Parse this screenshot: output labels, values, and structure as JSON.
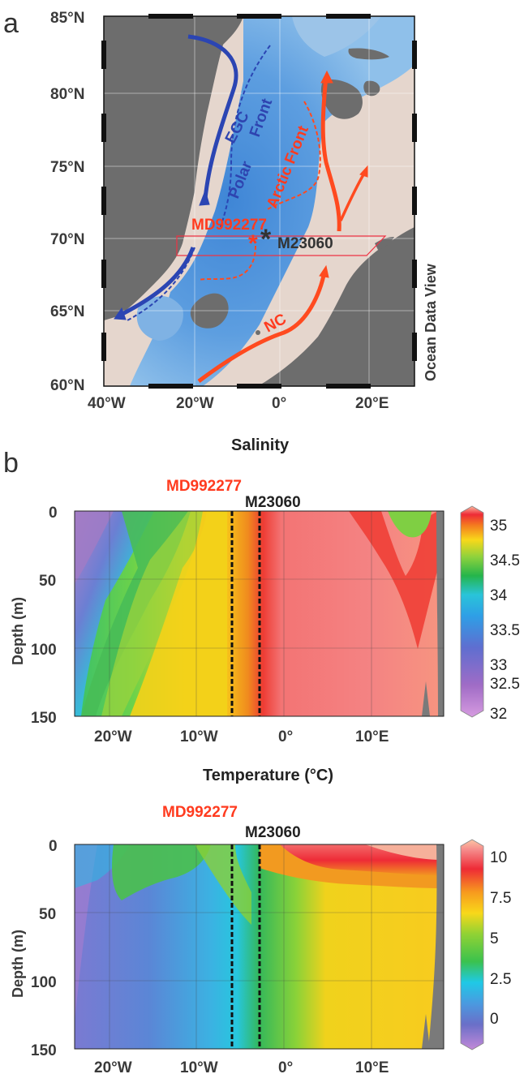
{
  "panel_a": {
    "panel_label": "a",
    "lat_labels": [
      "85°N",
      "80°N",
      "75°N",
      "70°N",
      "65°N",
      "60°N"
    ],
    "lon_labels": [
      "40°W",
      "20°W",
      "0°",
      "20°E"
    ],
    "current_labels": {
      "egc": "EGC",
      "nc": "NC"
    },
    "front_labels": {
      "polar": "Polar",
      "front1": "Front",
      "arctic": "Arctic Front"
    },
    "stations": {
      "md": "MD992277",
      "m23": "M23060"
    },
    "credit": "Ocean Data View",
    "colors": {
      "land": "#6d6d6d",
      "ocean_deep": "#6a9ed8",
      "shelf": "#e2d4cc",
      "warm_current": "#ff4a1f",
      "cold_current": "#2b45b3"
    }
  },
  "panel_b": {
    "panel_label": "b",
    "salinity_title": "Salinity",
    "temperature_title": "Temperature (°C)",
    "station_md": "MD992277",
    "station_m23": "M23060"
  },
  "chart_data": [
    {
      "type": "heatmap",
      "title": "Salinity",
      "xlabel": "",
      "ylabel": "Depth (m)",
      "x_ticks": [
        "20°W",
        "10°W",
        "0°",
        "10°E"
      ],
      "y_ticks": [
        "0",
        "50",
        "100",
        "150"
      ],
      "xlim": [
        -25,
        17
      ],
      "ylim": [
        150,
        0
      ],
      "colorbar_ticks": [
        "35",
        "34.5",
        "34",
        "33.5",
        "33",
        "32.5",
        "32"
      ],
      "colorbar_range": [
        32,
        35.2
      ],
      "station_lines_lon": [
        -6.5,
        -3.3
      ],
      "stations": [
        "MD992277",
        "M23060"
      ]
    },
    {
      "type": "heatmap",
      "title": "Temperature (°C)",
      "xlabel": "",
      "ylabel": "Depth (m)",
      "x_ticks": [
        "20°W",
        "10°W",
        "0°",
        "10°E"
      ],
      "y_ticks": [
        "0",
        "50",
        "100",
        "150"
      ],
      "xlim": [
        -25,
        17
      ],
      "ylim": [
        150,
        0
      ],
      "colorbar_ticks": [
        "10",
        "7.5",
        "5",
        "2.5",
        "0"
      ],
      "colorbar_range": [
        -1.5,
        11
      ],
      "station_lines_lon": [
        -6.5,
        -3.3
      ],
      "stations": [
        "MD992277",
        "M23060"
      ]
    }
  ]
}
